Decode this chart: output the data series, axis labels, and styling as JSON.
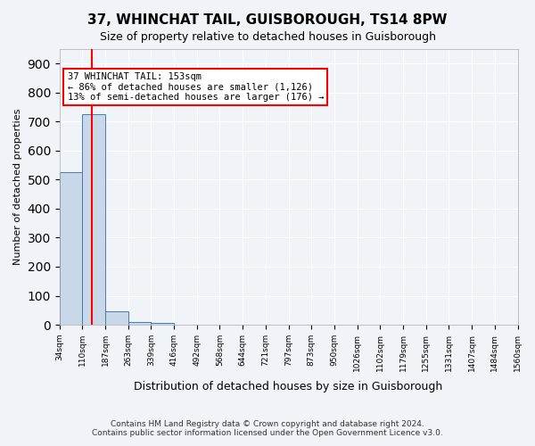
{
  "title": "37, WHINCHAT TAIL, GUISBOROUGH, TS14 8PW",
  "subtitle": "Size of property relative to detached houses in Guisborough",
  "xlabel": "Distribution of detached houses by size in Guisborough",
  "ylabel": "Number of detached properties",
  "footer_line1": "Contains HM Land Registry data © Crown copyright and database right 2024.",
  "footer_line2": "Contains public sector information licensed under the Open Government Licence v3.0.",
  "bin_labels": [
    "34sqm",
    "110sqm",
    "187sqm",
    "263sqm",
    "339sqm",
    "416sqm",
    "492sqm",
    "568sqm",
    "644sqm",
    "721sqm",
    "797sqm",
    "873sqm",
    "950sqm",
    "1026sqm",
    "1102sqm",
    "1179sqm",
    "1255sqm",
    "1331sqm",
    "1407sqm",
    "1484sqm",
    "1560sqm"
  ],
  "bar_values": [
    525,
    725,
    45,
    10,
    5,
    0,
    0,
    0,
    0,
    0,
    0,
    0,
    0,
    0,
    0,
    0,
    0,
    0,
    0,
    0
  ],
  "bar_color": "#c8d8e8",
  "bar_edge_color": "#4a7ab5",
  "property_line_x": 1.43,
  "property_sqm": 153,
  "annotation_title": "37 WHINCHAT TAIL: 153sqm",
  "annotation_line1": "← 86% of detached houses are smaller (1,126)",
  "annotation_line2": "13% of semi-detached houses are larger (176) →",
  "annotation_box_color": "white",
  "annotation_box_edge_color": "red",
  "property_line_color": "red",
  "ylim": [
    0,
    950
  ],
  "yticks": [
    0,
    100,
    200,
    300,
    400,
    500,
    600,
    700,
    800,
    900
  ],
  "background_color": "#f0f4f8",
  "grid_color": "white"
}
